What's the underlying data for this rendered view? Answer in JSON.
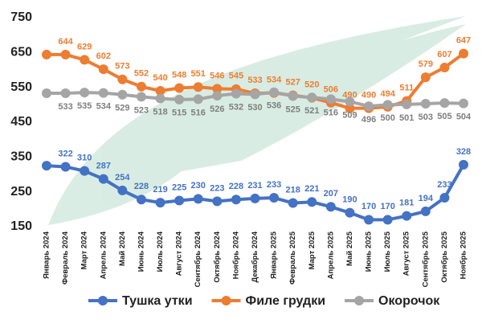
{
  "chart_data": {
    "type": "line",
    "categories": [
      "Январь 2024",
      "Февраль 2024",
      "Март 2024",
      "Апрель 2024",
      "Май 2024",
      "Июнь 2024",
      "Июль 2024",
      "Август 2024",
      "Сентябрь 2024",
      "Октябрь 2024",
      "Ноябрь 2024",
      "Декабрь 2024",
      "Январь 2025",
      "Февраль 2025",
      "Март 2025",
      "Апрель 2025",
      "Май 2025",
      "Июнь 2025",
      "Июль 2025",
      "Август 2025",
      "Сентябрь 2025",
      "Октябрь 2025",
      "Ноябрь 2025"
    ],
    "series": [
      {
        "name": "Тушка утки",
        "color": "#4472c4",
        "label_position": "above",
        "values": [
          325,
          322,
          310,
          287,
          254,
          228,
          219,
          225,
          230,
          223,
          228,
          231,
          233,
          218,
          221,
          207,
          190,
          170,
          170,
          181,
          194,
          233,
          328
        ],
        "value_labels": [
          null,
          "322",
          "310",
          "287",
          "254",
          "228",
          "219",
          "225",
          "230",
          "223",
          "228",
          "231",
          "233",
          "218",
          "221",
          "207",
          "190",
          "170",
          "170",
          "181",
          "194",
          "233",
          "328"
        ]
      },
      {
        "name": "Филе грудки",
        "color": "#ed7d31",
        "label_position": "above",
        "values": [
          644,
          644,
          629,
          602,
          573,
          552,
          540,
          548,
          551,
          546,
          545,
          533,
          534,
          527,
          520,
          506,
          490,
          490,
          494,
          511,
          579,
          607,
          647
        ],
        "value_labels": [
          null,
          "644",
          "629",
          "602",
          "573",
          "552",
          "540",
          "548",
          "551",
          "546",
          "545",
          "533",
          "534",
          "527",
          "520",
          "506",
          "490",
          "490",
          "494",
          "511",
          "579",
          "607",
          "647"
        ]
      },
      {
        "name": "Окорочок",
        "color": "#a5a5a5",
        "label_position": "below",
        "values": [
          533,
          533,
          535,
          534,
          529,
          523,
          518,
          515,
          516,
          526,
          532,
          530,
          536,
          525,
          521,
          516,
          509,
          496,
          500,
          501,
          503,
          505,
          504
        ],
        "value_labels": [
          null,
          "533",
          "535",
          "534",
          "529",
          "523",
          "518",
          "515",
          "516",
          "526",
          "532",
          "530",
          "536",
          "525",
          "521",
          "516",
          "509",
          "496",
          "500",
          "501",
          "503",
          "505",
          "504"
        ]
      }
    ],
    "ylim": [
      150,
      750
    ],
    "yticks": [
      150,
      250,
      350,
      450,
      550,
      650,
      750
    ],
    "grid": false,
    "legend": "bottom"
  }
}
